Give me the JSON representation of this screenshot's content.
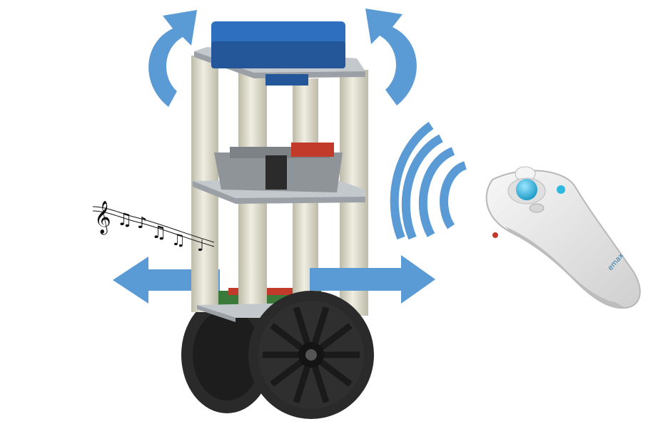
{
  "colors": {
    "arrow": "#5b9bd5",
    "box_top": "#2f6fbf",
    "box_side": "#24579a",
    "pillar": "#e6e3d2",
    "pillar_shade": "#c9c6b4",
    "plate": "#9aa0a6",
    "plate_light": "#c3c8cc",
    "wheel": "#2a2a2a",
    "tire_tread": "#444444",
    "battery": "#8f9498",
    "board_red": "#c23b2a",
    "remote_body": "#ececec",
    "remote_shade": "#c9c9c9",
    "trackball": "#2eb8e0"
  },
  "icons": {
    "rotate_left": "curved-arrow-counterclockwise-icon",
    "rotate_right": "curved-arrow-clockwise-icon",
    "move_left": "arrow-left-icon",
    "move_right": "arrow-right-icon",
    "signal": "wireless-signal-icon",
    "music": "music-notes-icon"
  },
  "labels": {
    "remote_brand": "emax"
  }
}
